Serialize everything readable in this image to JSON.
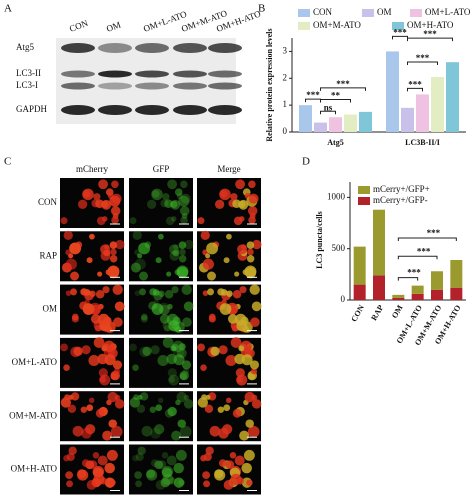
{
  "panel_labels": [
    "A",
    "B",
    "C",
    "D"
  ],
  "blot": {
    "lanes": [
      "CON",
      "OM",
      "OM+L-ATO",
      "OM+M-ATO",
      "OM+H-ATO"
    ],
    "bands": [
      "Atg5",
      "LC3-II",
      "LC3-I",
      "GAPDH"
    ]
  },
  "imaging": {
    "columns": [
      "mCherry",
      "GFP",
      "Merge"
    ],
    "rows": [
      "CON",
      "RAP",
      "OM",
      "OM+L-ATO",
      "OM+M-ATO",
      "OM+H-ATO"
    ]
  },
  "chart_data": [
    {
      "type": "bar",
      "ylabel": "Relative protein expression levels",
      "categories": [
        "Atg5",
        "LC3B-II/I"
      ],
      "series": [
        {
          "name": "CON",
          "color": "#a9c7ea",
          "values": [
            1.0,
            3.0
          ]
        },
        {
          "name": "OM",
          "color": "#c9c1ea",
          "values": [
            0.35,
            0.9
          ]
        },
        {
          "name": "OM+L-ATO",
          "color": "#f0c2e2",
          "values": [
            0.55,
            1.4
          ]
        },
        {
          "name": "OM+M-ATO",
          "color": "#e3edc4",
          "values": [
            0.65,
            2.05
          ]
        },
        {
          "name": "OM+H-ATO",
          "color": "#7ec6d8",
          "values": [
            0.75,
            2.6
          ]
        }
      ],
      "ylim": [
        0,
        3.5
      ],
      "yticks": [
        0,
        1,
        2,
        3
      ],
      "annotations": [
        "***",
        "ns",
        "**",
        "***",
        "***",
        "***",
        "***",
        "***"
      ]
    },
    {
      "type": "stacked_bar",
      "ylabel": "LC3 puncta/cells",
      "categories": [
        "CON",
        "RAP",
        "OM",
        "OM+L-ATO",
        "OM+M-ATO",
        "OM+H-ATO"
      ],
      "series": [
        {
          "name": "mCerry+/GFP+",
          "color": "#9b9a2e",
          "values": [
            370,
            640,
            30,
            80,
            180,
            270
          ]
        },
        {
          "name": "mCerry+/GFP-",
          "color": "#b3222a",
          "values": [
            150,
            240,
            20,
            60,
            100,
            120
          ]
        }
      ],
      "ylim": [
        0,
        1150
      ],
      "yticks": [
        0,
        500,
        1000
      ],
      "annotations": [
        "***",
        "***",
        "***"
      ]
    }
  ]
}
